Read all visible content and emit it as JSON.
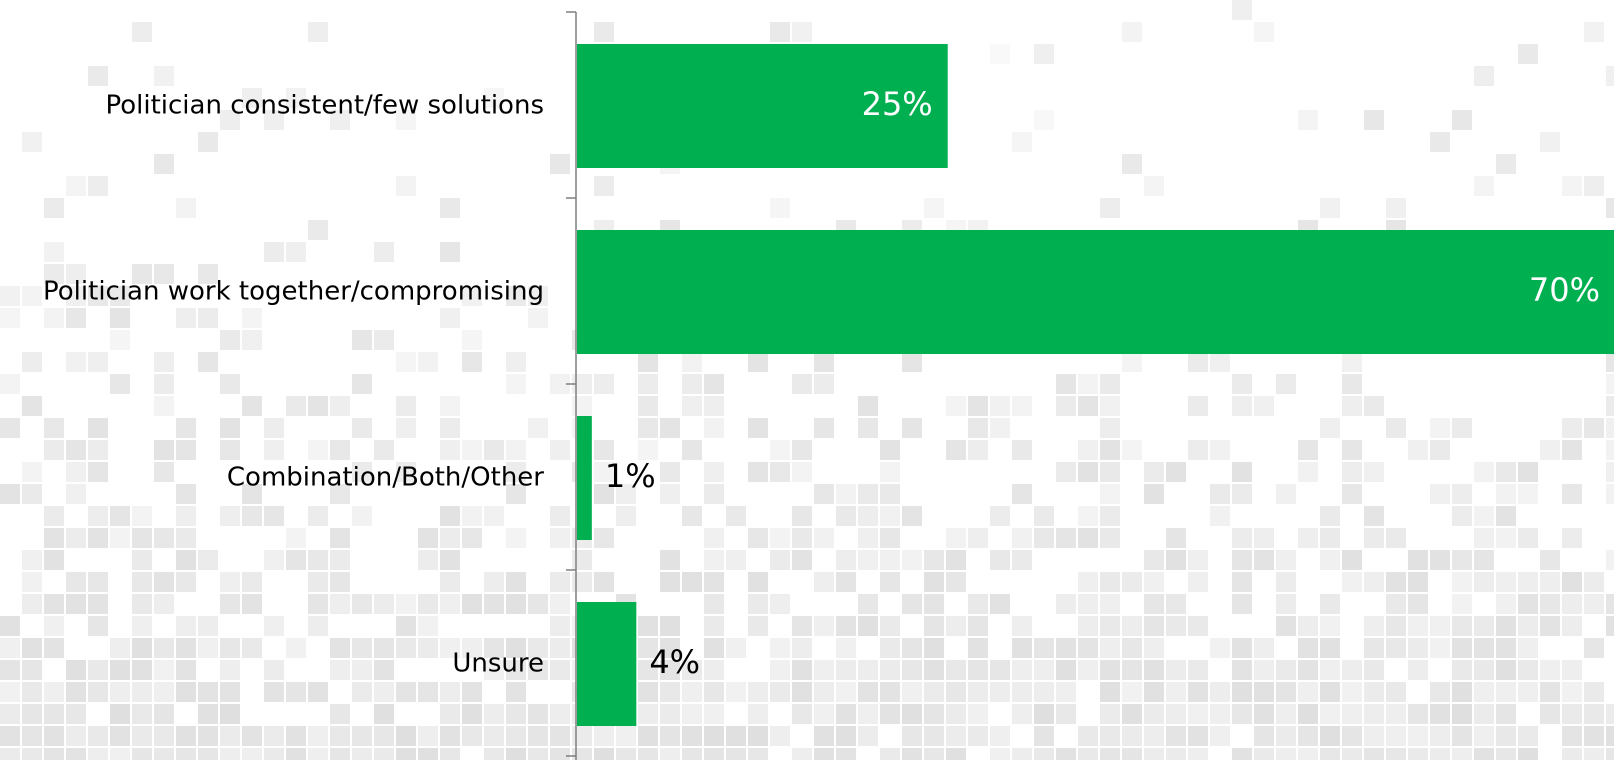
{
  "chart_data": {
    "type": "bar",
    "orientation": "horizontal",
    "categories": [
      "Politician consistent/few solutions",
      "Politician work together/compromising",
      "Combination/Both/Other",
      "Unsure"
    ],
    "values": [
      25,
      70,
      1,
      4
    ],
    "value_labels": [
      "25%",
      "70%",
      "1%",
      "4%"
    ],
    "unit": "%",
    "xlim": [
      0,
      70
    ],
    "title": "",
    "xlabel": "",
    "ylabel": "",
    "grid": false,
    "legend": "none"
  },
  "colors": {
    "bar": "#00b050",
    "axis": "#7f7f7f",
    "label_inside": "#ffffff",
    "label_outside": "#000000",
    "background_tile": "#e6e6e6"
  }
}
